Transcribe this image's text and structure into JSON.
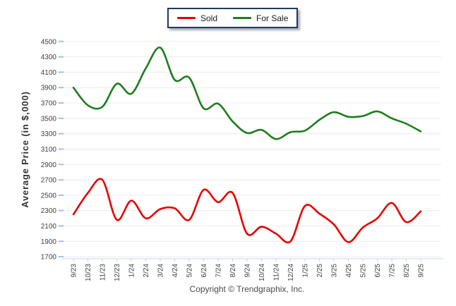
{
  "legend": {
    "items": [
      {
        "label": "Sold",
        "color": "#e60000"
      },
      {
        "label": "For Sale",
        "color": "#1e7d1e"
      }
    ]
  },
  "y_axis_title": "Average Price (in $,000)",
  "footer": {
    "copyright": "Copyright © Trendgraphix, Inc."
  },
  "chart_data": {
    "type": "line",
    "title": "",
    "xlabel": "",
    "ylabel": "Average Price (in $,000)",
    "ylim": [
      1700,
      4500
    ],
    "ytick_step": 200,
    "grid": true,
    "smooth": true,
    "legend_position": "top-center",
    "categories": [
      "9/23",
      "10/23",
      "11/23",
      "12/23",
      "1/24",
      "2/24",
      "3/24",
      "4/24",
      "5/24",
      "6/24",
      "7/24",
      "8/24",
      "9/24",
      "10/24",
      "11/24",
      "12/24",
      "1/25",
      "2/25",
      "3/25",
      "4/25",
      "5/25",
      "6/25",
      "7/25",
      "8/25",
      "9/25"
    ],
    "series": [
      {
        "name": "Sold",
        "color": "#e60000",
        "values": [
          2250,
          2530,
          2700,
          2180,
          2430,
          2200,
          2320,
          2330,
          2180,
          2570,
          2410,
          2530,
          2000,
          2090,
          2000,
          1900,
          2360,
          2260,
          2120,
          1890,
          2080,
          2200,
          2400,
          2150,
          2290
        ]
      },
      {
        "name": "For Sale",
        "color": "#1e7d1e",
        "values": [
          3900,
          3670,
          3650,
          3950,
          3820,
          4150,
          4420,
          4000,
          4030,
          3630,
          3690,
          3460,
          3310,
          3350,
          3230,
          3320,
          3340,
          3480,
          3580,
          3520,
          3530,
          3590,
          3500,
          3430,
          3330
        ]
      }
    ]
  },
  "axis_colors": {
    "gridline": "#ececec",
    "y_tick": "#9dc3e6",
    "x_axis_line": "#c9d6e4",
    "tick_label": "#3f3f3f"
  }
}
